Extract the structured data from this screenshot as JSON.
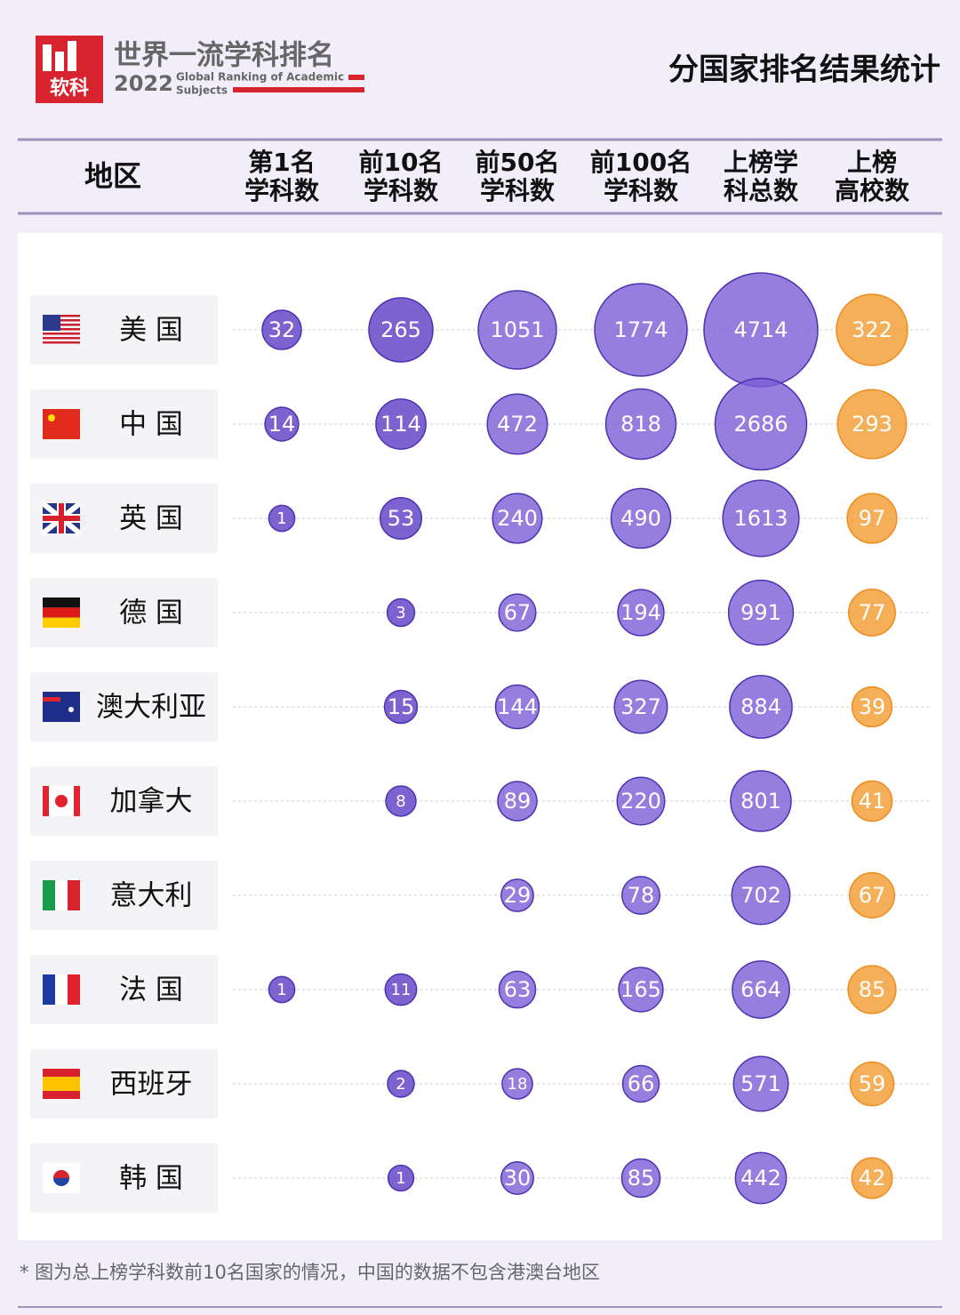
{
  "header": {
    "logo_text": "软科",
    "title": "世界一流学科排名",
    "year": "2022",
    "subtitle_line1": "Global Ranking of Academic",
    "subtitle_line2": "Subjects",
    "heading": "分国家排名结果统计"
  },
  "table": {
    "region_header": "地区",
    "columns": [
      [
        "第1名",
        "学科数"
      ],
      [
        "前10名",
        "学科数"
      ],
      [
        "前50名",
        "学科数"
      ],
      [
        "前100名",
        "学科数"
      ],
      [
        "上榜学",
        "科总数"
      ],
      [
        "上榜",
        "高校数"
      ]
    ],
    "rows": [
      {
        "region": "美 国",
        "values": [
          32,
          265,
          1051,
          1774,
          4714,
          322
        ]
      },
      {
        "region": "中 国",
        "values": [
          14,
          114,
          472,
          818,
          2686,
          293
        ]
      },
      {
        "region": "英 国",
        "values": [
          1,
          53,
          240,
          490,
          1613,
          97
        ]
      },
      {
        "region": "德 国",
        "values": [
          null,
          3,
          67,
          194,
          991,
          77
        ]
      },
      {
        "region": "澳大利亚",
        "values": [
          null,
          15,
          144,
          327,
          884,
          39
        ]
      },
      {
        "region": "加拿大",
        "values": [
          null,
          8,
          89,
          220,
          801,
          41
        ]
      },
      {
        "region": "意大利",
        "values": [
          null,
          null,
          29,
          78,
          702,
          67
        ]
      },
      {
        "region": "法 国",
        "values": [
          1,
          11,
          63,
          165,
          664,
          85
        ]
      },
      {
        "region": "西班牙",
        "values": [
          null,
          2,
          18,
          66,
          571,
          59
        ]
      },
      {
        "region": "韩 国",
        "values": [
          null,
          1,
          30,
          85,
          442,
          42
        ]
      }
    ]
  },
  "footnote": "* 图为总上榜学科数前10名国家的情况，中国的数据不包含港澳台地区"
}
